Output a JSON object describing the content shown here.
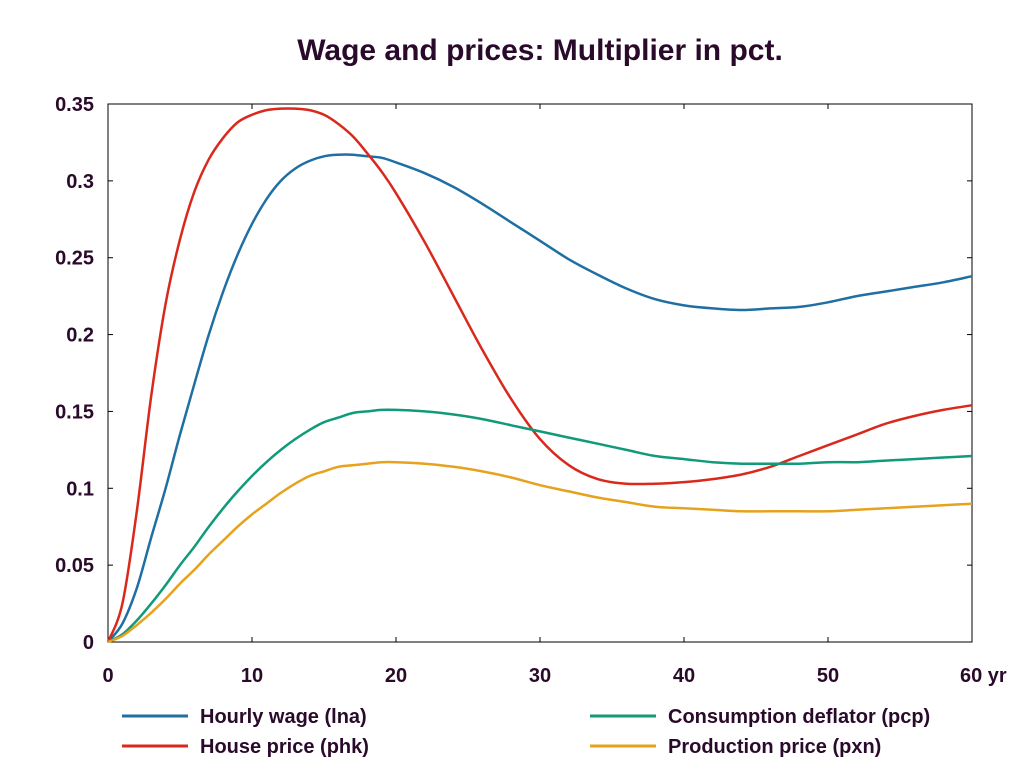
{
  "chart_data": {
    "type": "line",
    "title": "Wage and prices: Multiplier in pct.",
    "xlabel": "",
    "ylabel": "",
    "xlim": [
      0,
      60
    ],
    "ylim": [
      0,
      0.35
    ],
    "x_ticks": [
      0,
      10,
      20,
      30,
      40,
      50,
      60
    ],
    "x_tick_labels": [
      "0",
      "10",
      "20",
      "30",
      "40",
      "50",
      "60 yr"
    ],
    "y_ticks": [
      0,
      0.05,
      0.1,
      0.15,
      0.2,
      0.25,
      0.3,
      0.35
    ],
    "y_tick_labels": [
      "0",
      "0.05",
      "0.1",
      "0.15",
      "0.2",
      "0.25",
      "0.3",
      "0.35"
    ],
    "grid": false,
    "legend_position": "bottom",
    "series": [
      {
        "name": "Hourly wage (lna)",
        "color": "#1f6fa3",
        "x": [
          0,
          1,
          2,
          3,
          4,
          5,
          6,
          7,
          8,
          9,
          10,
          11,
          12,
          13,
          14,
          15,
          16,
          17,
          18,
          19,
          20,
          22,
          24,
          26,
          28,
          30,
          32,
          34,
          36,
          38,
          40,
          42,
          44,
          46,
          48,
          50,
          52,
          54,
          56,
          58,
          60
        ],
        "y": [
          0,
          0.012,
          0.035,
          0.068,
          0.1,
          0.135,
          0.168,
          0.2,
          0.228,
          0.252,
          0.272,
          0.288,
          0.3,
          0.308,
          0.313,
          0.316,
          0.317,
          0.317,
          0.316,
          0.315,
          0.312,
          0.305,
          0.296,
          0.285,
          0.273,
          0.261,
          0.249,
          0.239,
          0.23,
          0.223,
          0.219,
          0.217,
          0.216,
          0.217,
          0.218,
          0.221,
          0.225,
          0.228,
          0.231,
          0.234,
          0.238
        ]
      },
      {
        "name": "House price (phk)",
        "color": "#d9291c",
        "x": [
          0,
          1,
          2,
          3,
          4,
          5,
          6,
          7,
          8,
          9,
          10,
          11,
          12,
          13,
          14,
          15,
          16,
          17,
          18,
          19,
          20,
          22,
          24,
          26,
          28,
          30,
          32,
          34,
          36,
          38,
          40,
          42,
          44,
          46,
          48,
          50,
          52,
          54,
          56,
          58,
          60
        ],
        "y": [
          0,
          0.025,
          0.085,
          0.16,
          0.22,
          0.262,
          0.293,
          0.314,
          0.328,
          0.338,
          0.343,
          0.346,
          0.347,
          0.347,
          0.346,
          0.343,
          0.337,
          0.329,
          0.318,
          0.306,
          0.292,
          0.26,
          0.225,
          0.19,
          0.158,
          0.132,
          0.115,
          0.106,
          0.103,
          0.103,
          0.104,
          0.106,
          0.109,
          0.114,
          0.121,
          0.128,
          0.135,
          0.142,
          0.147,
          0.151,
          0.154
        ]
      },
      {
        "name": "Consumption deflator (pcp)",
        "color": "#119a7a",
        "x": [
          0,
          1,
          2,
          3,
          4,
          5,
          6,
          7,
          8,
          9,
          10,
          11,
          12,
          13,
          14,
          15,
          16,
          17,
          18,
          19,
          20,
          22,
          24,
          26,
          28,
          30,
          32,
          34,
          36,
          38,
          40,
          42,
          44,
          46,
          48,
          50,
          52,
          54,
          56,
          58,
          60
        ],
        "y": [
          0,
          0.005,
          0.014,
          0.025,
          0.037,
          0.05,
          0.062,
          0.075,
          0.087,
          0.098,
          0.108,
          0.117,
          0.125,
          0.132,
          0.138,
          0.143,
          0.146,
          0.149,
          0.15,
          0.151,
          0.151,
          0.15,
          0.148,
          0.145,
          0.141,
          0.137,
          0.133,
          0.129,
          0.125,
          0.121,
          0.119,
          0.117,
          0.116,
          0.116,
          0.116,
          0.117,
          0.117,
          0.118,
          0.119,
          0.12,
          0.121
        ]
      },
      {
        "name": "Production price (pxn)",
        "color": "#e6a21d",
        "x": [
          0,
          1,
          2,
          3,
          4,
          5,
          6,
          7,
          8,
          9,
          10,
          11,
          12,
          13,
          14,
          15,
          16,
          17,
          18,
          19,
          20,
          22,
          24,
          26,
          28,
          30,
          32,
          34,
          36,
          38,
          40,
          42,
          44,
          46,
          48,
          50,
          52,
          54,
          56,
          58,
          60
        ],
        "y": [
          0,
          0.004,
          0.011,
          0.019,
          0.028,
          0.038,
          0.047,
          0.057,
          0.066,
          0.075,
          0.083,
          0.09,
          0.097,
          0.103,
          0.108,
          0.111,
          0.114,
          0.115,
          0.116,
          0.117,
          0.117,
          0.116,
          0.114,
          0.111,
          0.107,
          0.102,
          0.098,
          0.094,
          0.091,
          0.088,
          0.087,
          0.086,
          0.085,
          0.085,
          0.085,
          0.085,
          0.086,
          0.087,
          0.088,
          0.089,
          0.09
        ]
      }
    ]
  }
}
